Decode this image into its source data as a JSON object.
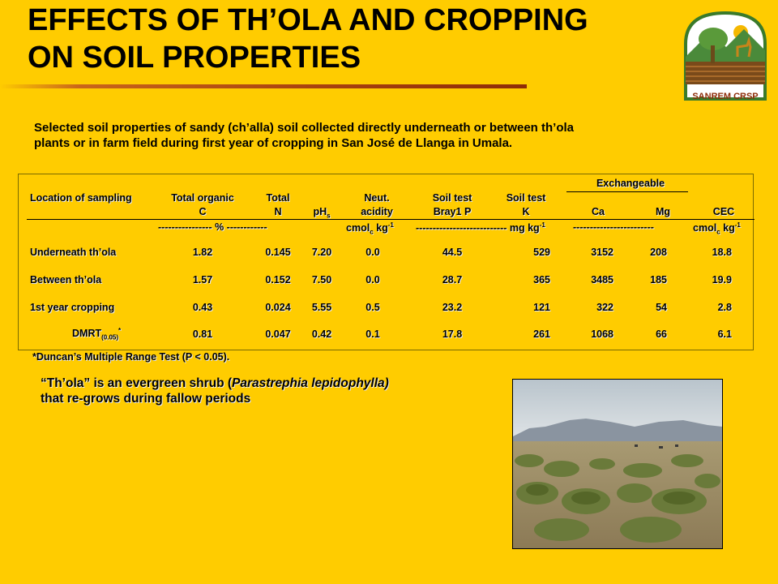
{
  "title_line1": "EFFECTS OF TH’OLA  AND CROPPING",
  "title_line2": "ON SOIL PROPERTIES",
  "logo_text": "SANREM CRSP",
  "subtitle_line1": "Selected soil properties of sandy (ch’alla) soil collected directly underneath or between th’ola",
  "subtitle_line2": "plants or in farm field during first year of cropping in San José de Llanga in Umala.",
  "table": {
    "group_header": "Exchangeable",
    "headers": {
      "location": "Location of sampling",
      "toc_1": "Total organic",
      "toc_2": "C",
      "tn_1": "Total",
      "tn_2": "N",
      "ph": "pH",
      "ph_sub": "s",
      "acid_1": "Neut.",
      "acid_2": "acidity",
      "p_1": "Soil test",
      "p_2": "Bray1 P",
      "k_1": "Soil test",
      "k_2": "K",
      "ca": "Ca",
      "mg": "Mg",
      "cec": "CEC"
    },
    "units": {
      "pct": "---------------- %  ------------",
      "cmol1": "cmol",
      "cmol1_sub": "c",
      "cmol1_tail": " kg",
      "cmol1_sup": "-1",
      "mgkg": "--------------------------- mg kg",
      "mgkg_sup": "-1",
      "dashes": "------------------------",
      "cmol2": "cmol",
      "cmol2_sub": "c",
      "cmol2_tail": " kg",
      "cmol2_sup": "-1"
    },
    "rows": [
      {
        "location": "Underneath th’ola",
        "toc": "1.82",
        "tn": "0.145",
        "ph": "7.20",
        "acid": "0.0",
        "p": "44.5",
        "k": "529",
        "ca": "3152",
        "mg": "208",
        "cec": "18.8"
      },
      {
        "location": "Between th’ola",
        "toc": "1.57",
        "tn": "0.152",
        "ph": "7.50",
        "acid": "0.0",
        "p": "28.7",
        "k": "365",
        "ca": "3485",
        "mg": "185",
        "cec": "19.9"
      },
      {
        "location": "1st year cropping",
        "toc": "0.43",
        "tn": "0.024",
        "ph": "5.55",
        "acid": "0.5",
        "p": "23.2",
        "k": "121",
        "ca": "322",
        "mg": "54",
        "cec": "2.8"
      }
    ],
    "dmrt": {
      "label": "DMRT",
      "label_sub": "(0.05)",
      "label_sup": "*",
      "toc": "0.81",
      "tn": "0.047",
      "ph": "0.42",
      "acid": "0.1",
      "p": "17.8",
      "k": "261",
      "ca": "1068",
      "mg": "66",
      "cec": "6.1"
    }
  },
  "footnote": "*Duncan’s Multiple Range Test (P < 0.05).",
  "note_pre": "“Th’ola” is an evergreen shrub (",
  "note_italic": "Parastrephia lepidophylla)",
  "note_line2": "that re-grows during fallow periods"
}
